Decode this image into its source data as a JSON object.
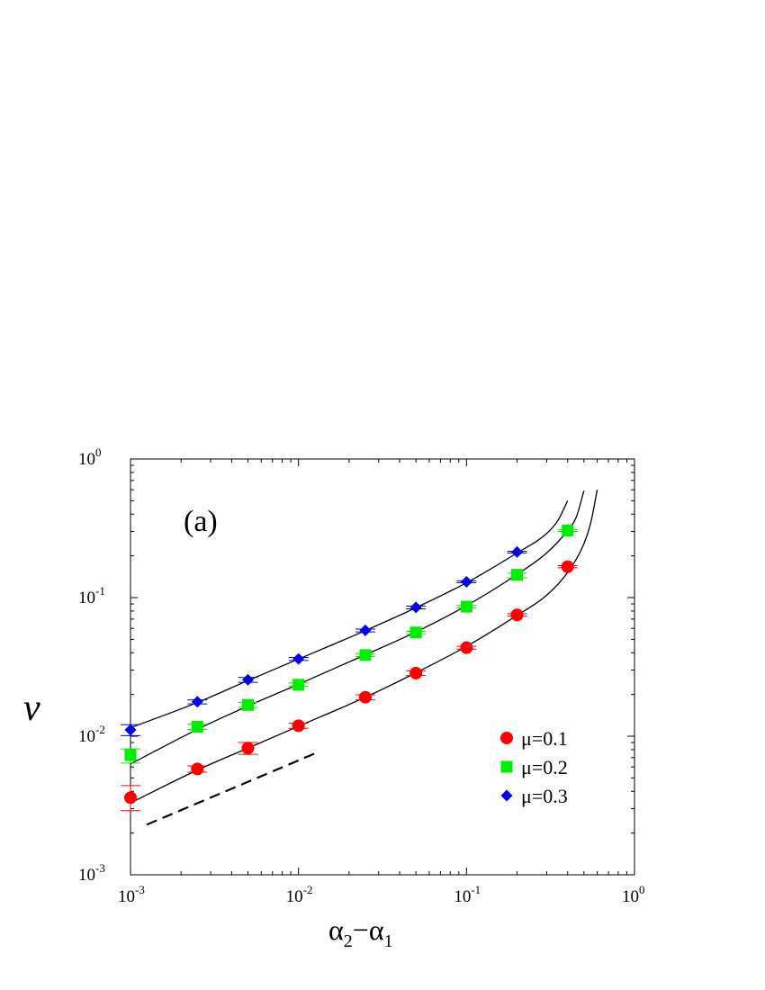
{
  "chart_data": {
    "type": "scatter",
    "title": "",
    "panel_label": "(a)",
    "xlabel": {
      "main": "α",
      "sub1": "2",
      "minus": "−",
      "main2": "α",
      "sub2": "1"
    },
    "ylabel": "v",
    "x_scale": "log",
    "y_scale": "log",
    "xlim": [
      0.001,
      1
    ],
    "ylim": [
      0.001,
      1
    ],
    "x_ticks": [
      {
        "value": 0.001,
        "base": "10",
        "exp": "-3"
      },
      {
        "value": 0.01,
        "base": "10",
        "exp": "-2"
      },
      {
        "value": 0.1,
        "base": "10",
        "exp": "-1"
      },
      {
        "value": 1,
        "base": "10",
        "exp": "0"
      }
    ],
    "y_ticks": [
      {
        "value": 0.001,
        "base": "10",
        "exp": "-3"
      },
      {
        "value": 0.01,
        "base": "10",
        "exp": "-2"
      },
      {
        "value": 0.1,
        "base": "10",
        "exp": "-1"
      },
      {
        "value": 1,
        "base": "10",
        "exp": "0"
      }
    ],
    "grid": false,
    "legend_position": "lower-right",
    "series": [
      {
        "name": "μ=0.1",
        "marker": "circle",
        "color": "#ff0000",
        "x": [
          0.001,
          0.0025,
          0.005,
          0.01,
          0.025,
          0.05,
          0.1,
          0.2,
          0.4
        ],
        "y": [
          0.0036,
          0.0058,
          0.0082,
          0.0119,
          0.0191,
          0.0285,
          0.0435,
          0.075,
          0.167
        ],
        "y_err_low": [
          0.0029,
          0.0055,
          0.0074,
          0.0114,
          0.0183,
          0.0274,
          0.0425,
          0.0735,
          0.164
        ],
        "y_err_high": [
          0.0044,
          0.0061,
          0.009,
          0.0124,
          0.0199,
          0.0296,
          0.0445,
          0.0765,
          0.17
        ]
      },
      {
        "name": "μ=0.2",
        "marker": "square",
        "color": "#00ee00",
        "x": [
          0.001,
          0.0025,
          0.005,
          0.01,
          0.025,
          0.05,
          0.1,
          0.2,
          0.4
        ],
        "y": [
          0.0073,
          0.0117,
          0.0168,
          0.0235,
          0.0385,
          0.056,
          0.086,
          0.146,
          0.305
        ],
        "y_err_low": [
          0.0064,
          0.0112,
          0.0161,
          0.0229,
          0.0376,
          0.0549,
          0.0843,
          0.139,
          0.3
        ],
        "y_err_high": [
          0.0081,
          0.0122,
          0.0175,
          0.0242,
          0.0394,
          0.0572,
          0.0877,
          0.15,
          0.31
        ]
      },
      {
        "name": "μ=0.3",
        "marker": "diamond",
        "color": "#0000ee",
        "x": [
          0.001,
          0.0025,
          0.005,
          0.01,
          0.025,
          0.05,
          0.1,
          0.2
        ],
        "y": [
          0.0111,
          0.0177,
          0.0255,
          0.0361,
          0.058,
          0.085,
          0.13,
          0.213
        ],
        "y_err_low": [
          0.0101,
          0.0171,
          0.0245,
          0.0352,
          0.0566,
          0.083,
          0.128,
          0.21
        ],
        "y_err_high": [
          0.0121,
          0.0183,
          0.0266,
          0.037,
          0.0593,
          0.087,
          0.132,
          0.216
        ]
      }
    ],
    "fit_curves": [
      {
        "for_series": "μ=0.1",
        "style": "solid",
        "color": "#000000",
        "x": [
          0.001,
          0.0025,
          0.005,
          0.01,
          0.025,
          0.05,
          0.1,
          0.2,
          0.3,
          0.4,
          0.5,
          0.55,
          0.6
        ],
        "y": [
          0.0033,
          0.0057,
          0.0082,
          0.0118,
          0.0191,
          0.0287,
          0.0445,
          0.0745,
          0.104,
          0.152,
          0.245,
          0.35,
          0.6
        ]
      },
      {
        "for_series": "μ=0.2",
        "style": "solid",
        "color": "#000000",
        "x": [
          0.001,
          0.0025,
          0.005,
          0.01,
          0.025,
          0.05,
          0.1,
          0.2,
          0.3,
          0.4,
          0.45,
          0.5
        ],
        "y": [
          0.0063,
          0.0112,
          0.0165,
          0.0237,
          0.0387,
          0.0565,
          0.0875,
          0.147,
          0.21,
          0.305,
          0.38,
          0.59
        ]
      },
      {
        "for_series": "μ=0.3",
        "style": "solid",
        "color": "#000000",
        "x": [
          0.001,
          0.0025,
          0.005,
          0.01,
          0.025,
          0.05,
          0.1,
          0.2,
          0.3,
          0.35,
          0.4
        ],
        "y": [
          0.0115,
          0.0175,
          0.0252,
          0.036,
          0.0578,
          0.0845,
          0.128,
          0.21,
          0.29,
          0.36,
          0.5
        ]
      },
      {
        "for_series": "",
        "style": "dashed",
        "color": "#000000",
        "x": [
          0.00125,
          0.0125
        ],
        "y": [
          0.0023,
          0.0075
        ]
      }
    ]
  }
}
